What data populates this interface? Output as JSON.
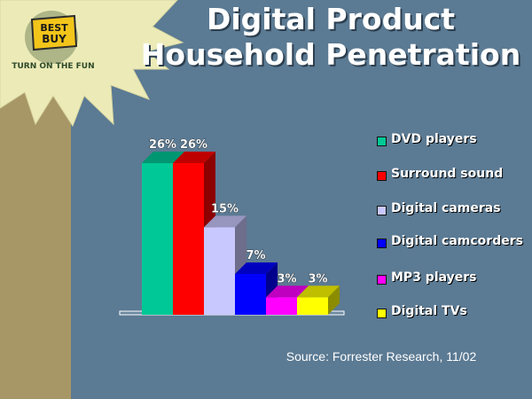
{
  "title_line1": "Digital Product",
  "title_line2": "Household Penetration",
  "logo": {
    "line1": "BEST",
    "line2": "BUY",
    "tagline": "TURN ON THE FUN"
  },
  "source": "Source: Forrester Research, 11/02",
  "colors": {
    "background": "#5b7a93",
    "starburst": "#ecebb8",
    "left_band": "#a89766",
    "logo_yellow": "#f3c51a"
  },
  "chart_data": {
    "type": "bar",
    "categories": [
      "DVD players",
      "Surround sound",
      "Digital cameras",
      "Digital camcorders",
      "MP3 players",
      "Digital TVs"
    ],
    "values": [
      26,
      26,
      15,
      7,
      3,
      3
    ],
    "data_labels": [
      "26%",
      "26%",
      "15%",
      "7%",
      "3%",
      "3%"
    ],
    "colors": [
      "#00c896",
      "#ff0000",
      "#c8c8ff",
      "#0000ff",
      "#ff00ff",
      "#ffff00"
    ],
    "ylim": [
      0,
      30
    ],
    "grid": false,
    "legend_position": "right",
    "legend": [
      {
        "label": "DVD players",
        "color": "#00c896"
      },
      {
        "label": "Surround sound",
        "color": "#ff0000"
      },
      {
        "label": "Digital cameras",
        "color": "#c8c8ff"
      },
      {
        "label": "Digital camcorders",
        "color": "#0000ff"
      },
      {
        "label": "MP3 players",
        "color": "#ff00ff"
      },
      {
        "label": "Digital TVs",
        "color": "#ffff00"
      }
    ]
  }
}
